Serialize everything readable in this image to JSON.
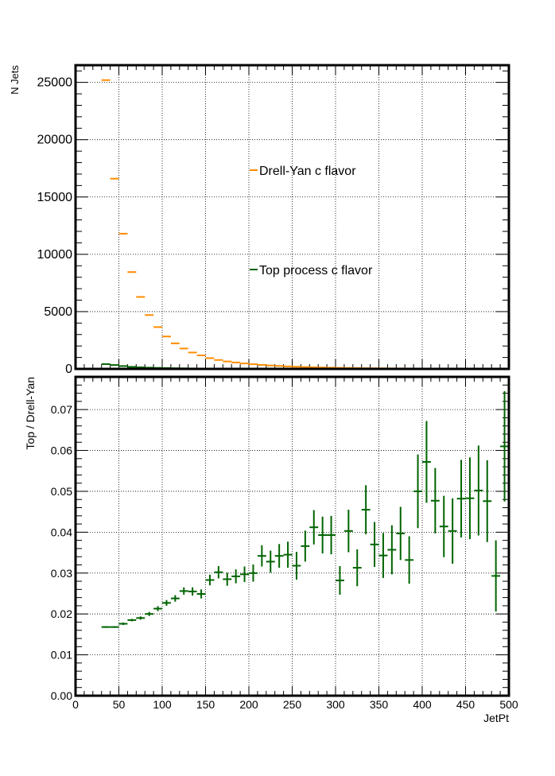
{
  "chart_data": [
    {
      "type": "scatter",
      "ylabel": "N Jets",
      "xlim": [
        0,
        500
      ],
      "ylim": [
        0,
        26500
      ],
      "grid": true,
      "x_ticks": [
        "0",
        "50",
        "100",
        "150",
        "200",
        "250",
        "300",
        "350",
        "400",
        "450",
        "500"
      ],
      "y_ticks": [
        "0",
        "5000",
        "10000",
        "15000",
        "20000",
        "25000"
      ],
      "series": [
        {
          "name": "Drell-Yan c flavor",
          "color": "#ff8c00",
          "x": [
            35,
            45,
            55,
            65,
            75,
            85,
            95,
            105,
            115,
            125,
            135,
            145,
            155,
            165,
            175,
            185,
            195,
            205,
            215,
            225,
            235,
            245,
            255,
            265,
            275,
            285,
            295,
            305,
            315,
            325,
            335,
            345,
            355,
            365,
            375,
            385,
            395,
            405,
            415,
            425,
            435,
            445,
            455,
            465,
            475,
            485,
            495
          ],
          "values": [
            25200,
            16600,
            11800,
            8450,
            6280,
            4700,
            3650,
            2830,
            2230,
            1780,
            1430,
            1180,
            940,
            780,
            650,
            560,
            480,
            410,
            350,
            300,
            260,
            220,
            190,
            165,
            140,
            125,
            110,
            95,
            85,
            75,
            65,
            58,
            52,
            46,
            41,
            37,
            33,
            30,
            27,
            24,
            22,
            20,
            18,
            16,
            15,
            13,
            12
          ]
        },
        {
          "name": "Top process c flavor",
          "color": "#006400",
          "x": [
            35,
            45,
            55,
            65,
            75,
            85,
            95,
            105,
            115,
            125,
            135,
            145,
            155,
            165,
            175,
            185,
            195,
            205,
            215,
            225,
            235,
            245,
            255,
            265,
            275,
            285,
            295,
            305,
            315,
            325,
            335,
            345,
            355,
            365,
            375,
            385,
            395,
            405,
            415,
            425,
            435,
            445,
            455,
            465,
            475,
            485,
            495
          ],
          "values": [
            420,
            340,
            250,
            180,
            140,
            110,
            90,
            75,
            60,
            50,
            40,
            32,
            28,
            23,
            19,
            16,
            14,
            12,
            10,
            9,
            8,
            7,
            6,
            6,
            5,
            5,
            4,
            4,
            4,
            3,
            3,
            3,
            2,
            2,
            2,
            2,
            2,
            2,
            1,
            1,
            1,
            1,
            1,
            1,
            1,
            1,
            1
          ]
        }
      ],
      "legend": [
        "Drell-Yan c flavor",
        "Top process c flavor"
      ]
    },
    {
      "type": "scatter",
      "xlabel": "JetPt",
      "ylabel": "Top / Drell-Yan",
      "xlim": [
        0,
        500
      ],
      "ylim": [
        0,
        0.078
      ],
      "grid": true,
      "x_ticks": [
        "0",
        "50",
        "100",
        "150",
        "200",
        "250",
        "300",
        "350",
        "400",
        "450",
        "500"
      ],
      "y_ticks": [
        "0.00",
        "0.01",
        "0.02",
        "0.03",
        "0.04",
        "0.05",
        "0.06",
        "0.07"
      ],
      "series": [
        {
          "color": "#006400",
          "x": [
            35,
            45,
            55,
            65,
            75,
            85,
            95,
            105,
            115,
            125,
            135,
            145,
            155,
            165,
            175,
            185,
            195,
            205,
            215,
            225,
            235,
            245,
            255,
            265,
            275,
            285,
            295,
            305,
            315,
            325,
            335,
            345,
            355,
            365,
            375,
            385,
            395,
            405,
            415,
            425,
            435,
            445,
            455,
            465,
            475,
            485,
            495
          ],
          "values": [
            0.0168,
            0.0168,
            0.0176,
            0.0185,
            0.019,
            0.02,
            0.0213,
            0.0227,
            0.0238,
            0.0256,
            0.0255,
            0.0249,
            0.0283,
            0.0302,
            0.0285,
            0.0292,
            0.0297,
            0.03,
            0.0342,
            0.0328,
            0.0342,
            0.0345,
            0.0318,
            0.0366,
            0.0412,
            0.0393,
            0.0393,
            0.0282,
            0.0403,
            0.0313,
            0.0455,
            0.037,
            0.0343,
            0.0357,
            0.0397,
            0.0332,
            0.05,
            0.0572,
            0.0477,
            0.0414,
            0.0403,
            0.0482,
            0.0483,
            0.0502,
            0.0476,
            0.0293,
            0.061
          ],
          "errors": [
            0.0002,
            0.0002,
            0.0003,
            0.0003,
            0.0004,
            0.0005,
            0.0006,
            0.0007,
            0.0008,
            0.0009,
            0.001,
            0.0011,
            0.0013,
            0.0015,
            0.0016,
            0.0017,
            0.0019,
            0.0021,
            0.0026,
            0.0027,
            0.0029,
            0.0032,
            0.0034,
            0.0038,
            0.0042,
            0.0045,
            0.0047,
            0.0035,
            0.0052,
            0.0045,
            0.006,
            0.0055,
            0.0055,
            0.006,
            0.0065,
            0.0058,
            0.009,
            0.01,
            0.008,
            0.0075,
            0.008,
            0.0095,
            0.01,
            0.011,
            0.01,
            0.0087,
            0.0135
          ]
        }
      ]
    }
  ]
}
